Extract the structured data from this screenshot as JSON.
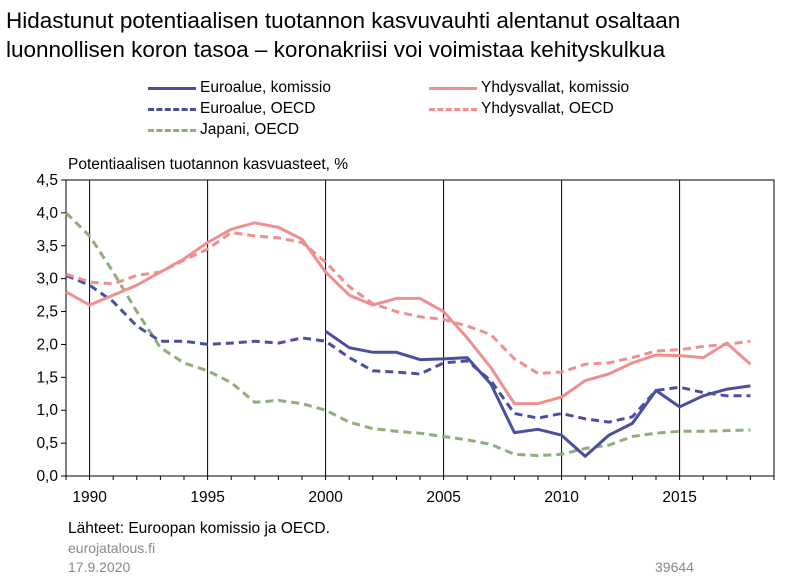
{
  "title_lines": [
    "Hidastunut potentiaalisen tuotannon kasvuvauhti alentanut osaltaan",
    "luonnollisen koron tasoa – koronakriisi voi voimistaa kehityskulkua"
  ],
  "subtitle": "Potentiaalisen tuotannon kasvuasteet, %",
  "source": "Lähteet: Euroopan komissio ja OECD.",
  "site": "eurojatalous.fi",
  "date": "17.9.2020",
  "code": "39644",
  "chart_data": {
    "type": "line",
    "ylabel": "Potentiaalisen tuotannon kasvuasteet, %",
    "ylim": [
      0,
      4.5
    ],
    "xlim": [
      1989,
      2019
    ],
    "y_ticks": [
      "0,0",
      "0,5",
      "1,0",
      "1,5",
      "2,0",
      "2,5",
      "3,0",
      "3,5",
      "4,0",
      "4,5"
    ],
    "x_ticks": [
      "1990",
      "1995",
      "2000",
      "2005",
      "2010",
      "2015"
    ],
    "grid_x": true,
    "legend_position": "top",
    "series": [
      {
        "name": "Euroalue, komissio",
        "color": "#4a4f9e",
        "dash": "solid",
        "x": [
          2000,
          2001,
          2002,
          2003,
          2004,
          2005,
          2006,
          2007,
          2008,
          2009,
          2010,
          2011,
          2012,
          2013,
          2014,
          2015,
          2016,
          2017,
          2018
        ],
        "y": [
          2.2,
          1.95,
          1.88,
          1.88,
          1.77,
          1.78,
          1.8,
          1.4,
          0.66,
          0.71,
          0.62,
          0.3,
          0.62,
          0.8,
          1.3,
          1.05,
          1.22,
          1.32,
          1.37
        ]
      },
      {
        "name": "Yhdysvallat, komissio",
        "color": "#ef8f8f",
        "dash": "solid",
        "x": [
          1989,
          1990,
          1991,
          1992,
          1993,
          1994,
          1995,
          1996,
          1997,
          1998,
          1999,
          2000,
          2001,
          2002,
          2003,
          2004,
          2005,
          2006,
          2007,
          2008,
          2009,
          2010,
          2011,
          2012,
          2013,
          2014,
          2015,
          2016,
          2017,
          2018
        ],
        "y": [
          2.8,
          2.6,
          2.75,
          2.9,
          3.1,
          3.3,
          3.55,
          3.75,
          3.85,
          3.78,
          3.6,
          3.1,
          2.75,
          2.6,
          2.7,
          2.7,
          2.5,
          2.1,
          1.65,
          1.1,
          1.1,
          1.2,
          1.45,
          1.55,
          1.72,
          1.84,
          1.83,
          1.8,
          2.02,
          1.7
        ]
      },
      {
        "name": "Euroalue, OECD",
        "color": "#4a4f9e",
        "dash": "dashed",
        "x": [
          1989,
          1990,
          1991,
          1992,
          1993,
          1994,
          1995,
          1996,
          1997,
          1998,
          1999,
          2000,
          2001,
          2002,
          2003,
          2004,
          2005,
          2006,
          2007,
          2008,
          2009,
          2010,
          2011,
          2012,
          2013,
          2014,
          2015,
          2016,
          2017,
          2018
        ],
        "y": [
          3.05,
          2.9,
          2.65,
          2.28,
          2.05,
          2.05,
          2.0,
          2.02,
          2.05,
          2.02,
          2.1,
          2.05,
          1.8,
          1.6,
          1.58,
          1.55,
          1.72,
          1.75,
          1.45,
          0.95,
          0.88,
          0.95,
          0.87,
          0.82,
          0.9,
          1.3,
          1.35,
          1.27,
          1.22,
          1.22
        ]
      },
      {
        "name": "Yhdysvallat, OECD",
        "color": "#ef8f8f",
        "dash": "dashed",
        "x": [
          1989,
          1990,
          1991,
          1992,
          1993,
          1994,
          1995,
          1996,
          1997,
          1998,
          1999,
          2000,
          2001,
          2002,
          2003,
          2004,
          2005,
          2006,
          2007,
          2008,
          2009,
          2010,
          2011,
          2012,
          2013,
          2014,
          2015,
          2016,
          2017,
          2018
        ],
        "y": [
          3.07,
          2.95,
          2.92,
          3.05,
          3.1,
          3.28,
          3.45,
          3.7,
          3.65,
          3.62,
          3.55,
          3.25,
          2.88,
          2.62,
          2.5,
          2.42,
          2.38,
          2.28,
          2.15,
          1.78,
          1.56,
          1.58,
          1.7,
          1.72,
          1.8,
          1.9,
          1.92,
          1.97,
          2.0,
          2.05
        ]
      },
      {
        "name": "Japani, OECD",
        "color": "#8fae78",
        "dash": "dashed",
        "x": [
          1989,
          1990,
          1991,
          1992,
          1993,
          1994,
          1995,
          1996,
          1997,
          1998,
          1999,
          2000,
          2001,
          2002,
          2003,
          2004,
          2005,
          2006,
          2007,
          2008,
          2009,
          2010,
          2011,
          2012,
          2013,
          2014,
          2015,
          2016,
          2017,
          2018
        ],
        "y": [
          4.0,
          3.65,
          3.1,
          2.5,
          1.95,
          1.72,
          1.6,
          1.42,
          1.12,
          1.15,
          1.1,
          1.0,
          0.82,
          0.72,
          0.68,
          0.65,
          0.6,
          0.55,
          0.48,
          0.33,
          0.31,
          0.33,
          0.42,
          0.47,
          0.6,
          0.65,
          0.68,
          0.68,
          0.69,
          0.7
        ]
      }
    ]
  }
}
